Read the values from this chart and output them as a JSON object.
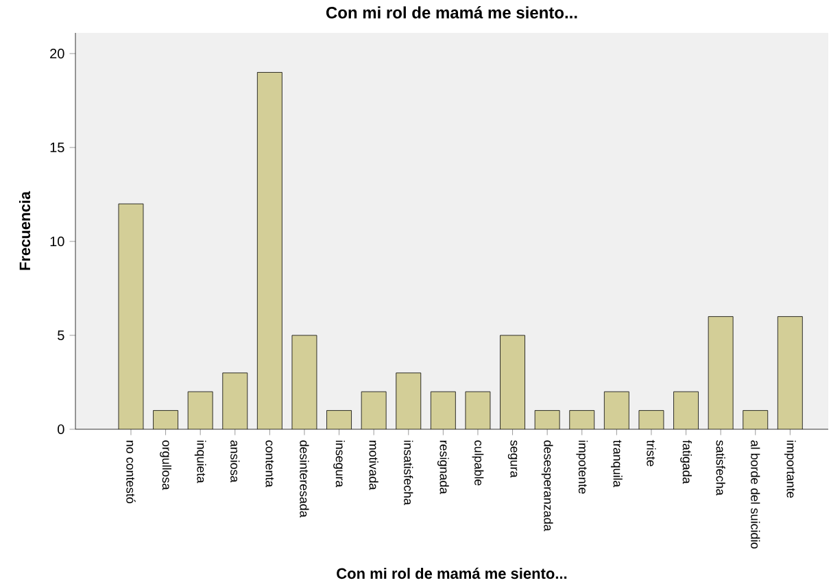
{
  "chart_data": {
    "type": "bar",
    "title": "Con mi rol de mamá me siento...",
    "xlabel": "Con mi rol de mamá me siento...",
    "ylabel": "Frecuencia",
    "categories": [
      "no contestó",
      "orgullosa",
      "inquieta",
      "ansiosa",
      "contenta",
      "desinteresada",
      "insegura",
      "motivada",
      "insatisfecha",
      "resignada",
      "culpable",
      "segura",
      "desesperanzada",
      "impotente",
      "tranquila",
      "triste",
      "fatigada",
      "satisfecha",
      "al borde del suicidio",
      "importante"
    ],
    "values": [
      12,
      1,
      2,
      3,
      19,
      5,
      1,
      2,
      3,
      2,
      2,
      5,
      1,
      1,
      2,
      1,
      2,
      6,
      1,
      6
    ],
    "color": "#d3ce97",
    "ylim": [
      0,
      21.1
    ],
    "yticks": [
      0,
      5,
      10,
      15,
      20
    ],
    "grid": false
  }
}
